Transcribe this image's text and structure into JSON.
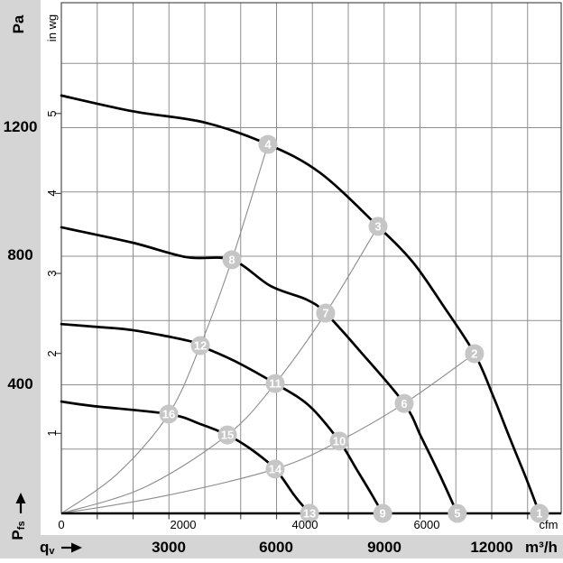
{
  "colors": {
    "band_gray": "#d5d5d5",
    "grid": "#8f8f8f",
    "frame": "#4d4d4d",
    "axis_line": "#000000",
    "fan_curve": "#000000",
    "system_curve": "#8c8c8c",
    "marker_fill": "#c6c6c6",
    "marker_text": "#ffffff",
    "label_text": "#000000"
  },
  "icons": {
    "flow_arrow": "solid-right-arrow",
    "pressure_arrow": "solid-up-arrow"
  },
  "chart_data": {
    "type": "line",
    "title": "",
    "grid": {
      "on": true,
      "x_step_m3h": 1000,
      "y_step_pa": 200
    },
    "x_axis": {
      "name_main": "q",
      "name_sub": "v",
      "unit": "m³/h",
      "tick_labels": [
        "3000",
        "6000",
        "9000",
        "12000"
      ],
      "ticks": [
        3000,
        6000,
        9000,
        12000
      ],
      "range": [
        0,
        14000
      ]
    },
    "x_axis2": {
      "unit": "cfm",
      "tick_labels": [
        "0",
        "2000",
        "4000",
        "6000"
      ],
      "ticks": [
        0,
        2000,
        4000,
        6000
      ],
      "m3h_per_cfm": 1.699
    },
    "y_axis": {
      "name_main": "P",
      "name_sub": "fs",
      "unit": "Pa",
      "tick_labels": [
        "1200",
        "800",
        "400"
      ],
      "ticks": [
        1200,
        800,
        400
      ],
      "range": [
        0,
        1590
      ]
    },
    "y_axis2": {
      "unit": "in wg",
      "tick_labels": [
        "5",
        "4",
        "3",
        "2",
        "1"
      ],
      "ticks": [
        5,
        4,
        3,
        2,
        1
      ],
      "pa_per_inwg": 248.84
    },
    "fan_curves": [
      {
        "name": "fan-curve-1",
        "points": [
          [
            0,
            1300
          ],
          [
            1990,
            1251
          ],
          [
            4000,
            1216
          ],
          [
            5760,
            1148
          ],
          [
            7220,
            1059
          ],
          [
            8830,
            893
          ],
          [
            9790,
            783
          ],
          [
            10620,
            651
          ],
          [
            11520,
            497
          ],
          [
            12050,
            362
          ],
          [
            12530,
            227
          ],
          [
            12960,
            109
          ],
          [
            13330,
            0
          ]
        ]
      },
      {
        "name": "fan-curve-2",
        "points": [
          [
            0,
            890
          ],
          [
            1990,
            842
          ],
          [
            3500,
            797
          ],
          [
            4755,
            789
          ],
          [
            5840,
            707
          ],
          [
            6840,
            665
          ],
          [
            7370,
            623
          ],
          [
            8350,
            502
          ],
          [
            9560,
            342
          ],
          [
            10040,
            236
          ],
          [
            10570,
            115
          ],
          [
            11040,
            0
          ]
        ]
      },
      {
        "name": "fan-curve-3",
        "points": [
          [
            0,
            589
          ],
          [
            880,
            581
          ],
          [
            1990,
            570
          ],
          [
            3500,
            538
          ],
          [
            3874,
            521
          ],
          [
            4830,
            474
          ],
          [
            5962,
            404
          ],
          [
            6918,
            334
          ],
          [
            7748,
            225
          ],
          [
            8226,
            138
          ],
          [
            8654,
            59
          ],
          [
            8956,
            0
          ]
        ]
      },
      {
        "name": "fan-curve-4",
        "points": [
          [
            0,
            348
          ],
          [
            880,
            334
          ],
          [
            2994,
            309
          ],
          [
            3874,
            278
          ],
          [
            4629,
            244
          ],
          [
            5257,
            202
          ],
          [
            5962,
            138
          ],
          [
            6515,
            53
          ],
          [
            6918,
            0
          ]
        ]
      }
    ],
    "system_curves": [
      {
        "name": "system-curve-1",
        "points": [
          [
            0,
            0
          ],
          [
            1560,
            123
          ],
          [
            2994,
            309
          ],
          [
            3874,
            522
          ],
          [
            4755,
            789
          ],
          [
            5760,
            1148
          ]
        ]
      },
      {
        "name": "system-curve-2",
        "points": [
          [
            0,
            0
          ],
          [
            2315,
            81
          ],
          [
            4629,
            244
          ],
          [
            5962,
            404
          ],
          [
            7370,
            623
          ],
          [
            8830,
            893
          ]
        ]
      },
      {
        "name": "system-curve-3",
        "points": [
          [
            0,
            0
          ],
          [
            2820,
            53
          ],
          [
            5962,
            138
          ],
          [
            7748,
            225
          ],
          [
            9560,
            342
          ],
          [
            11520,
            497
          ]
        ]
      }
    ],
    "markers": [
      {
        "n": "1",
        "qv": 13330,
        "pa": 0
      },
      {
        "n": "2",
        "qv": 11520,
        "pa": 497
      },
      {
        "n": "3",
        "qv": 8830,
        "pa": 893
      },
      {
        "n": "4",
        "qv": 5760,
        "pa": 1148
      },
      {
        "n": "5",
        "qv": 11040,
        "pa": 0
      },
      {
        "n": "6",
        "qv": 9560,
        "pa": 342
      },
      {
        "n": "7",
        "qv": 7370,
        "pa": 623
      },
      {
        "n": "8",
        "qv": 4755,
        "pa": 789
      },
      {
        "n": "9",
        "qv": 8960,
        "pa": 0
      },
      {
        "n": "10",
        "qv": 7748,
        "pa": 225
      },
      {
        "n": "11",
        "qv": 5962,
        "pa": 404
      },
      {
        "n": "12",
        "qv": 3874,
        "pa": 522
      },
      {
        "n": "13",
        "qv": 6920,
        "pa": 0
      },
      {
        "n": "14",
        "qv": 5962,
        "pa": 138
      },
      {
        "n": "15",
        "qv": 4629,
        "pa": 244
      },
      {
        "n": "16",
        "qv": 2994,
        "pa": 309
      }
    ]
  }
}
